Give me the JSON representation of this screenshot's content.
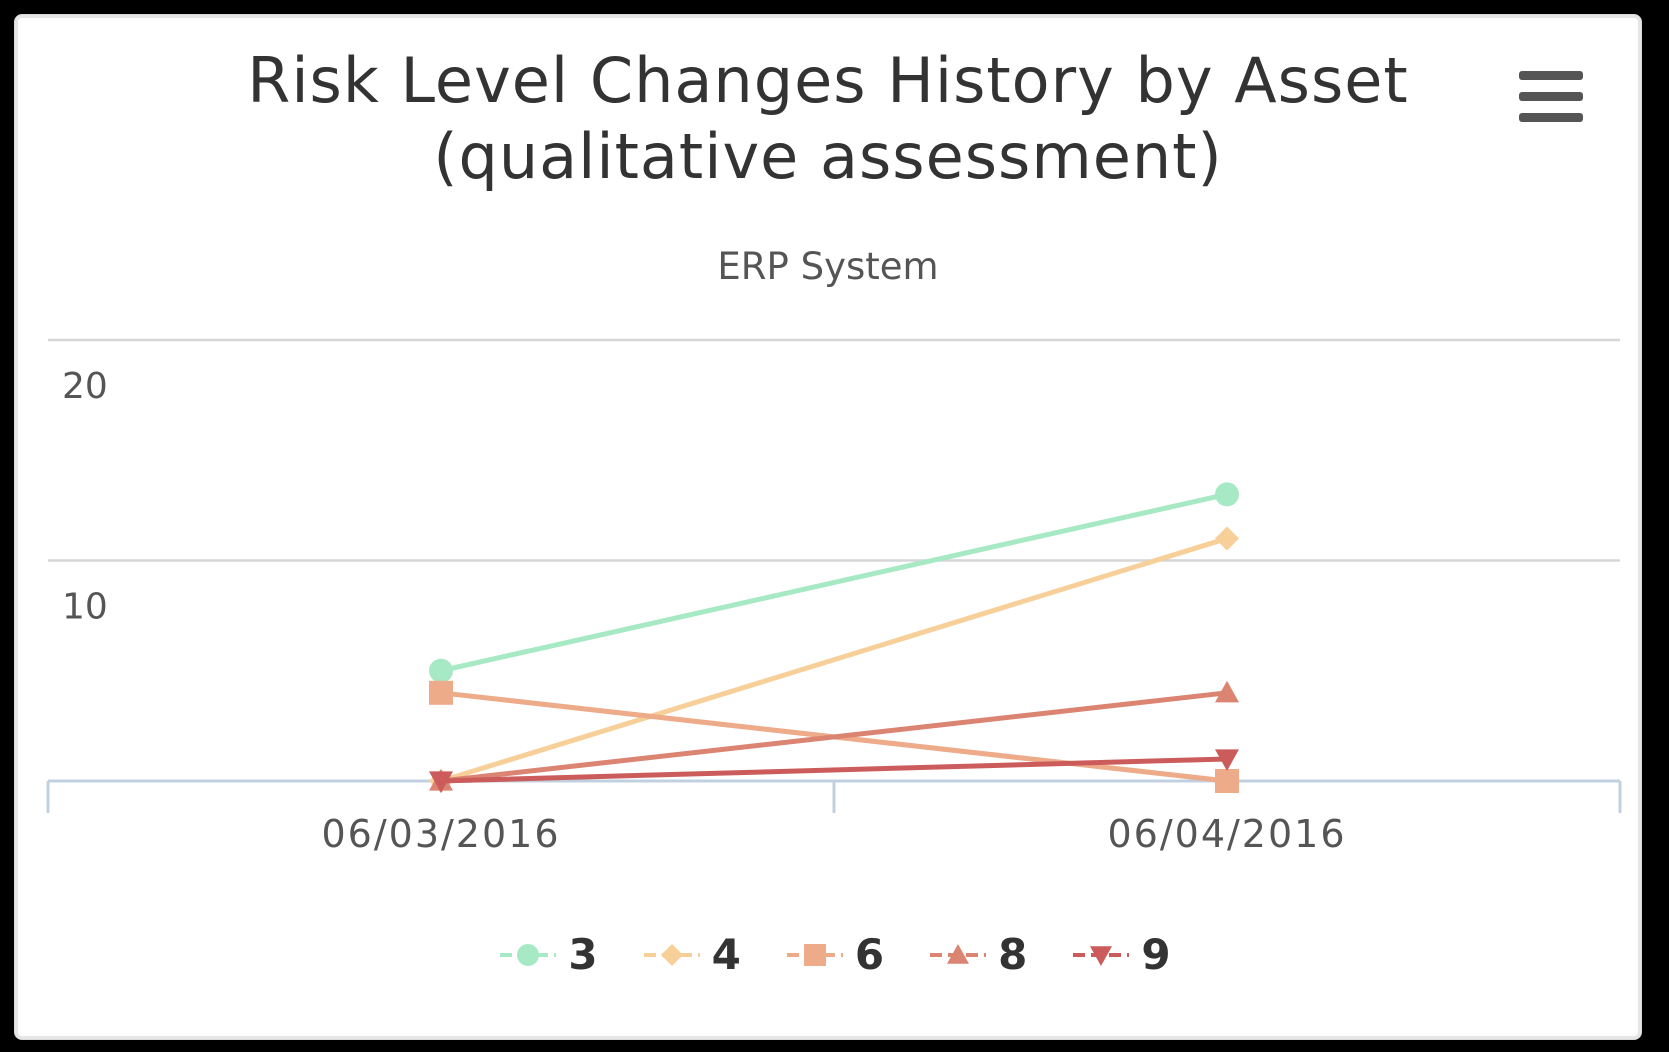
{
  "chart": {
    "title_line1": "Risk Level Changes History by Asset",
    "title_line2": "(qualitative assessment)",
    "subtitle": "ERP System",
    "menu_icon": "hamburger-menu-icon"
  },
  "chart_data": {
    "type": "line",
    "title": "Risk Level Changes History by Asset (qualitative assessment)",
    "subtitle": "ERP System",
    "categories": [
      "06/03/2016",
      "06/04/2016"
    ],
    "y_ticks": [
      10,
      20
    ],
    "ylim": [
      0,
      20
    ],
    "grid": true,
    "legend_position": "bottom",
    "series": [
      {
        "name": "3",
        "values": [
          5,
          13
        ],
        "color": "#a6e9c4",
        "marker": "circle"
      },
      {
        "name": "4",
        "values": [
          0,
          11
        ],
        "color": "#f7cf99",
        "marker": "diamond"
      },
      {
        "name": "6",
        "values": [
          4,
          0
        ],
        "color": "#eeab89",
        "marker": "square"
      },
      {
        "name": "8",
        "values": [
          0,
          4
        ],
        "color": "#db8472",
        "marker": "triangle"
      },
      {
        "name": "9",
        "values": [
          0,
          1
        ],
        "color": "#cc5c5c",
        "marker": "triangle-down"
      }
    ]
  }
}
